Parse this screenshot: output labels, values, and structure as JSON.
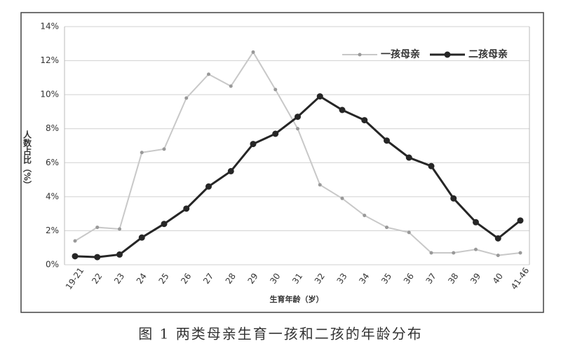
{
  "chart_data": {
    "type": "line",
    "caption": "图 1  两类母亲生育一孩和二孩的年龄分布",
    "x_label": "生育年龄（岁）",
    "y_label": "人数占比（%）",
    "categories": [
      "19-21",
      "22",
      "23",
      "24",
      "25",
      "26",
      "27",
      "28",
      "29",
      "30",
      "31",
      "32",
      "33",
      "34",
      "35",
      "36",
      "37",
      "38",
      "39",
      "40",
      "41-46"
    ],
    "series": [
      {
        "name": "一孩母亲",
        "color": "#c8c8c8",
        "values": [
          1.4,
          2.2,
          2.1,
          6.6,
          6.8,
          9.8,
          11.2,
          10.5,
          12.5,
          10.3,
          8.0,
          4.7,
          3.9,
          2.9,
          2.2,
          1.9,
          0.7,
          0.7,
          0.9,
          0.55,
          0.7
        ]
      },
      {
        "name": "二孩母亲",
        "color": "#262626",
        "values": [
          0.5,
          0.45,
          0.6,
          1.6,
          2.4,
          3.3,
          4.6,
          5.5,
          7.1,
          7.7,
          8.7,
          9.9,
          9.1,
          8.5,
          7.3,
          6.3,
          5.8,
          3.9,
          2.5,
          1.55,
          2.6
        ]
      }
    ],
    "ylim": [
      0,
      14
    ],
    "yticks": [
      {
        "value": 0,
        "label": "0%"
      },
      {
        "value": 2,
        "label": "2%"
      },
      {
        "value": 4,
        "label": "4%"
      },
      {
        "value": 6,
        "label": "6%"
      },
      {
        "value": 8,
        "label": "8%"
      },
      {
        "value": 10,
        "label": "10%"
      },
      {
        "value": 12,
        "label": "12%"
      },
      {
        "value": 14,
        "label": "14%"
      }
    ],
    "grid": true,
    "legend": "upper right"
  }
}
